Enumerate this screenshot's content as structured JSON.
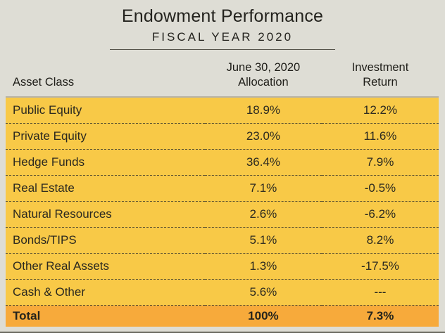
{
  "header": {
    "title": "Endowment Performance",
    "subtitle": "FISCAL YEAR 2020"
  },
  "table": {
    "header": {
      "asset_class": "Asset Class",
      "allocation_line1": "June 30, 2020",
      "allocation_line2": "Allocation",
      "return_line1": "Investment",
      "return_line2": "Return"
    },
    "rows": [
      {
        "asset": "Public Equity",
        "allocation": "18.9%",
        "return": "12.2%"
      },
      {
        "asset": "Private Equity",
        "allocation": "23.0%",
        "return": "11.6%"
      },
      {
        "asset": "Hedge Funds",
        "allocation": "36.4%",
        "return": "7.9%"
      },
      {
        "asset": "Real Estate",
        "allocation": "7.1%",
        "return": "-0.5%"
      },
      {
        "asset": "Natural Resources",
        "allocation": "2.6%",
        "return": "-6.2%"
      },
      {
        "asset": "Bonds/TIPS",
        "allocation": "5.1%",
        "return": "8.2%"
      },
      {
        "asset": "Other Real Assets",
        "allocation": "1.3%",
        "return": "-17.5%"
      },
      {
        "asset": "Cash & Other",
        "allocation": "5.6%",
        "return": "---"
      }
    ],
    "total": {
      "asset": "Total",
      "allocation": "100%",
      "return": "7.3%"
    }
  },
  "colors": {
    "page_bg": "#DEDDD5",
    "row_bg": "#F8C947",
    "total_bg": "#F7AA3B",
    "separator": "#48432E",
    "text": "#2B2920"
  },
  "chart_data": {
    "type": "table",
    "title": "Endowment Performance",
    "subtitle": "FISCAL YEAR 2020",
    "columns": [
      "Asset Class",
      "June 30, 2020 Allocation",
      "Investment Return"
    ],
    "units": "percent",
    "rows": [
      [
        "Public Equity",
        18.9,
        12.2
      ],
      [
        "Private Equity",
        23.0,
        11.6
      ],
      [
        "Hedge Funds",
        36.4,
        7.9
      ],
      [
        "Real Estate",
        7.1,
        -0.5
      ],
      [
        "Natural Resources",
        2.6,
        -6.2
      ],
      [
        "Bonds/TIPS",
        5.1,
        8.2
      ],
      [
        "Other Real Assets",
        1.3,
        -17.5
      ],
      [
        "Cash & Other",
        5.6,
        null
      ],
      [
        "Total",
        100.0,
        7.3
      ]
    ]
  }
}
